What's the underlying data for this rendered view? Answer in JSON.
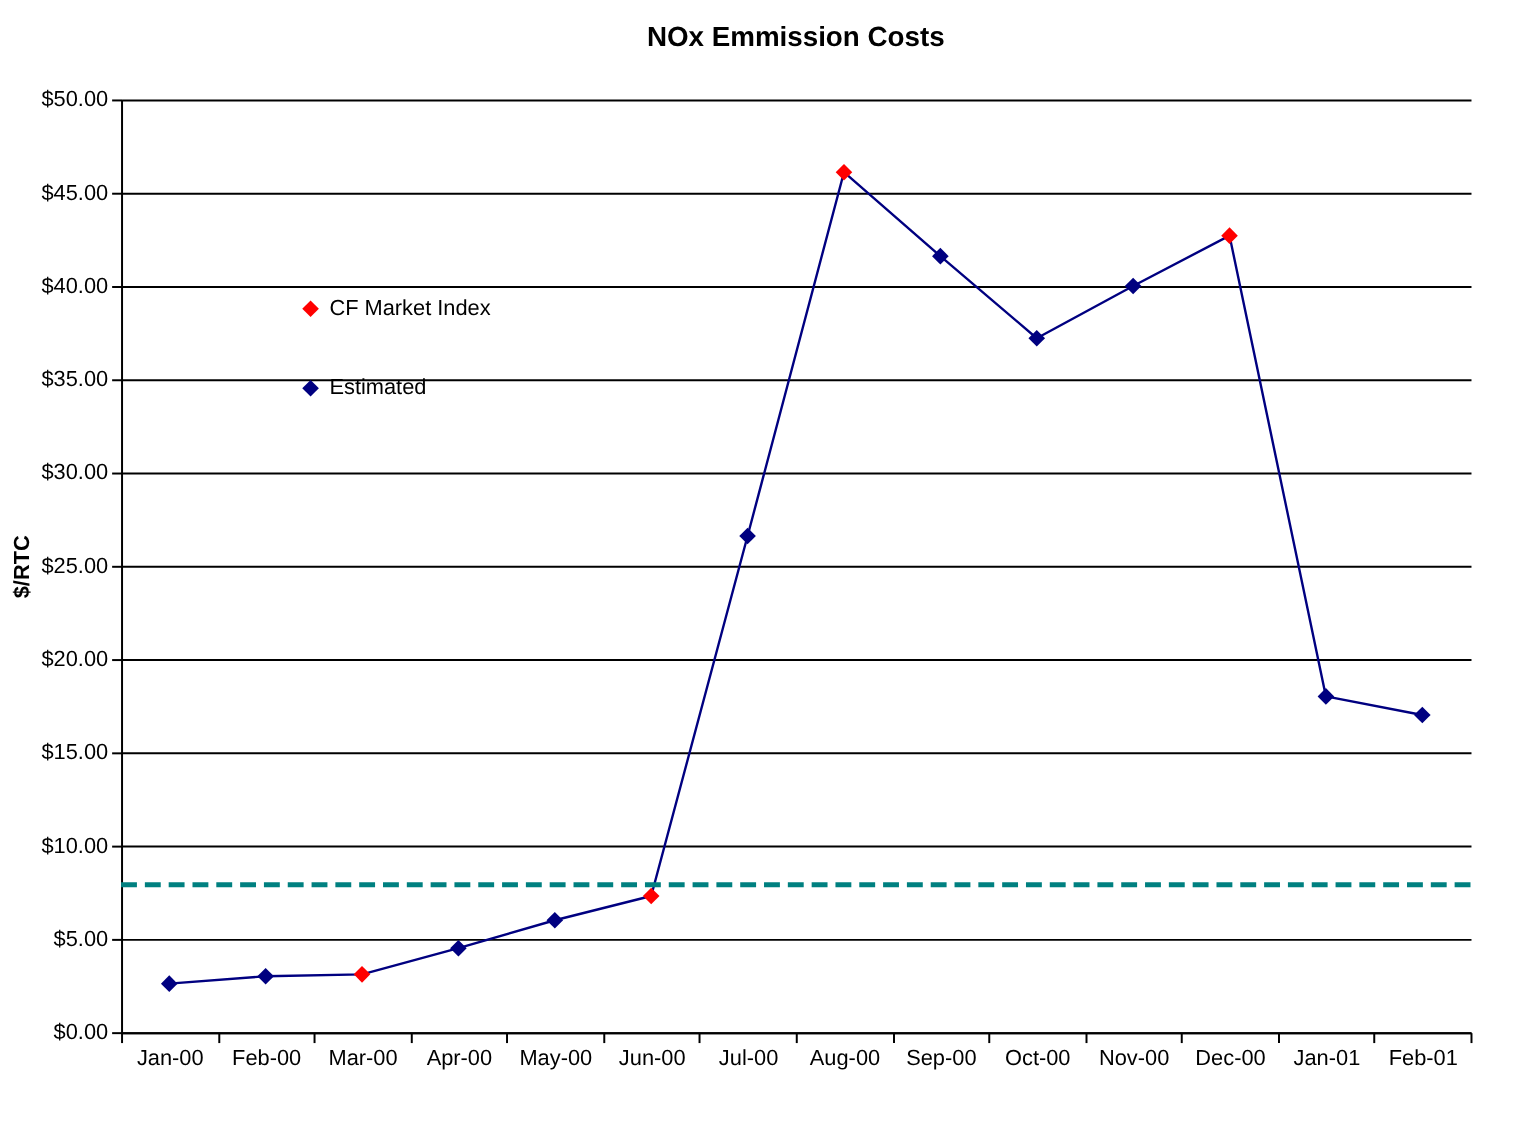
{
  "chart_data": {
    "type": "line",
    "title": "NOx Emmission Costs",
    "ylabel": "$/RTC",
    "categories": [
      "Jan-00",
      "Feb-00",
      "Mar-00",
      "Apr-00",
      "May-00",
      "Jun-00",
      "Jul-00",
      "Aug-00",
      "Sep-00",
      "Oct-00",
      "Nov-00",
      "Dec-00",
      "Jan-01",
      "Feb-01"
    ],
    "series": [
      {
        "type": "line",
        "color": "#000080",
        "marker": "none",
        "values": [
          2.6,
          3.0,
          3.1,
          4.5,
          6.0,
          7.3,
          26.6,
          46.1,
          41.6,
          37.2,
          40.0,
          42.7,
          18.0,
          17.0
        ]
      },
      {
        "type": "scatter",
        "name": "CF Market Index",
        "color": "#ff0000",
        "marker": "diamond",
        "values": [
          null,
          null,
          3.1,
          null,
          null,
          7.3,
          null,
          46.1,
          null,
          null,
          null,
          42.7,
          null,
          null
        ]
      },
      {
        "type": "scatter",
        "name": "Estimated",
        "color": "#000080",
        "marker": "diamond",
        "values": [
          2.6,
          3.0,
          null,
          4.5,
          6.0,
          null,
          26.6,
          null,
          41.6,
          37.2,
          40.0,
          null,
          18.0,
          17.0
        ]
      }
    ],
    "ylim": [
      0,
      50
    ],
    "yticks": [
      {
        "value": 0,
        "label": "$0.00"
      },
      {
        "value": 5,
        "label": "$5.00"
      },
      {
        "value": 10,
        "label": "$10.00"
      },
      {
        "value": 15,
        "label": "$15.00"
      },
      {
        "value": 20,
        "label": "$20.00"
      },
      {
        "value": 25,
        "label": "$25.00"
      },
      {
        "value": 30,
        "label": "$30.00"
      },
      {
        "value": 35,
        "label": "$35.00"
      },
      {
        "value": 40,
        "label": "$40.00"
      },
      {
        "value": 45,
        "label": "$45.00"
      },
      {
        "value": 50,
        "label": "$50.00"
      }
    ],
    "ref_lines": [
      {
        "axis": "y",
        "value": 7.9,
        "color": "#008080",
        "line_style": "dashed"
      }
    ],
    "grid": "y",
    "legend": "top left"
  }
}
